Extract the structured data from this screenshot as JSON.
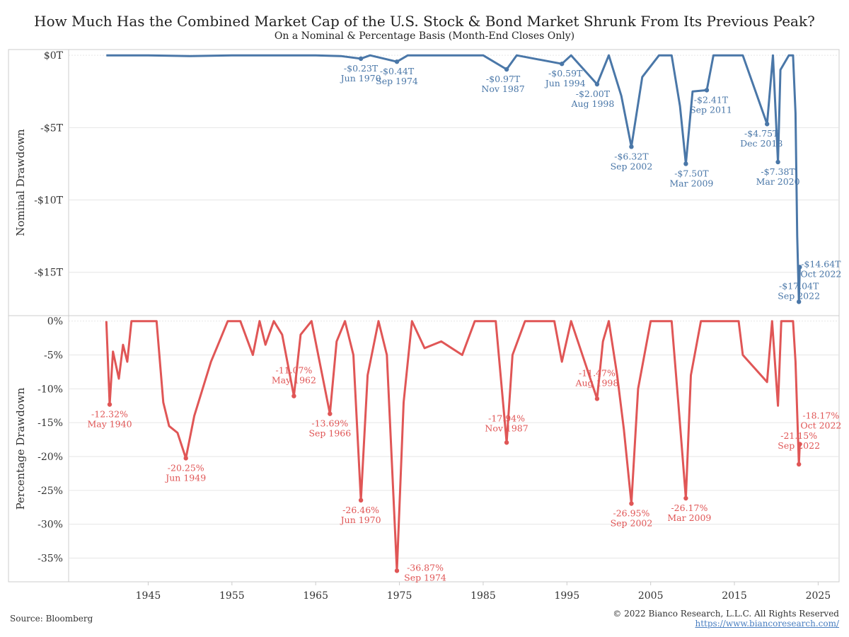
{
  "title": "How Much Has the Combined Market Cap of the U.S. Stock & Bond Market Shrunk From Its Previous Peak?",
  "subtitle": "On a Nominal & Percentage Basis (Month-End Closes Only)",
  "source": "Source: Bloomberg",
  "copyright": "© 2022 Bianco Research, L.L.C. All Rights Reserved",
  "url": "https://www.biancoresearch.com/",
  "colors": {
    "nominal": "#4a77a8",
    "percent": "#e05656",
    "grid": "#e6e6e6",
    "axis": "#cccccc"
  },
  "chart_data": [
    {
      "type": "line",
      "name": "nominal",
      "ylabel": "Nominal Drawdown",
      "ylim": [
        -18,
        0.4
      ],
      "yticks": [
        0,
        -5,
        -10,
        -15
      ],
      "ytick_labels": [
        "$0T",
        "-$5T",
        "-$10T",
        "-$15T"
      ],
      "xlim": [
        1935.5,
        2027.5
      ],
      "x": [
        1940.0,
        1945.0,
        1950.0,
        1955.0,
        1960.0,
        1965.0,
        1968.0,
        1970.4,
        1971.5,
        1974.7,
        1976.0,
        1980.0,
        1985.0,
        1987.8,
        1989.0,
        1994.4,
        1995.5,
        1998.6,
        2000.0,
        2001.5,
        2002.7,
        2004.0,
        2006.0,
        2007.5,
        2008.5,
        2009.2,
        2010.0,
        2011.7,
        2012.5,
        2014.0,
        2016.0,
        2018.9,
        2019.6,
        2020.2,
        2020.5,
        2021.5,
        2022.0,
        2022.3,
        2022.5,
        2022.7,
        2022.8
      ],
      "y": [
        0,
        0,
        -0.05,
        0,
        0,
        0,
        -0.05,
        -0.23,
        0,
        -0.44,
        0,
        0,
        0,
        -0.97,
        0,
        -0.59,
        0,
        -2.0,
        0,
        -2.8,
        -6.32,
        -1.5,
        0,
        0,
        -3.5,
        -7.5,
        -2.5,
        -2.41,
        0,
        0,
        0,
        -4.75,
        0,
        -7.38,
        -1.0,
        0,
        0,
        -4.0,
        -12.5,
        -17.04,
        -14.64
      ],
      "annotations": [
        {
          "x": 1970.4,
          "y": -0.23,
          "value": "-$0.23T",
          "date": "Jun 1970"
        },
        {
          "x": 1974.7,
          "y": -0.44,
          "value": "-$0.44T",
          "date": "Sep 1974"
        },
        {
          "x": 1987.8,
          "y": -0.97,
          "value": "-$0.97T",
          "date": "Nov 1987"
        },
        {
          "x": 1994.4,
          "y": -0.59,
          "value": "-$0.59T",
          "date": "Jun 1994"
        },
        {
          "x": 1998.6,
          "y": -2.0,
          "value": "-$2.00T",
          "date": "Aug 1998"
        },
        {
          "x": 2002.7,
          "y": -6.32,
          "value": "-$6.32T",
          "date": "Sep 2002"
        },
        {
          "x": 2009.2,
          "y": -7.5,
          "value": "-$7.50T",
          "date": "Mar 2009"
        },
        {
          "x": 2011.7,
          "y": -2.41,
          "value": "-$2.41T",
          "date": "Sep 2011"
        },
        {
          "x": 2018.9,
          "y": -4.75,
          "value": "-$4.75T",
          "date": "Dec 2018"
        },
        {
          "x": 2020.2,
          "y": -7.38,
          "value": "-$7.38T",
          "date": "Mar 2020"
        },
        {
          "x": 2022.7,
          "y": -17.04,
          "value": "-$17.04T",
          "date": "Sep 2022"
        },
        {
          "x": 2022.8,
          "y": -14.64,
          "value": "-$14.64T",
          "date": "Oct 2022"
        }
      ]
    },
    {
      "type": "line",
      "name": "percent",
      "ylabel": "Percentage Drawdown",
      "ylim": [
        -38.5,
        0.8
      ],
      "yticks": [
        0,
        -5,
        -10,
        -15,
        -20,
        -25,
        -30,
        -35
      ],
      "ytick_labels": [
        "0%",
        "-5%",
        "-10%",
        "-15%",
        "-20%",
        "-25%",
        "-30%",
        "-35%"
      ],
      "xlim": [
        1935.5,
        2027.5
      ],
      "xticks": [
        1945,
        1955,
        1965,
        1975,
        1985,
        1995,
        2005,
        2015,
        2025
      ],
      "xtick_labels": [
        "1945",
        "1955",
        "1965",
        "1975",
        "1985",
        "1995",
        "2005",
        "2015",
        "2025"
      ],
      "x": [
        1940.0,
        1940.4,
        1940.8,
        1941.5,
        1942.0,
        1942.5,
        1943.0,
        1944.0,
        1945.0,
        1946.0,
        1946.8,
        1947.5,
        1948.5,
        1949.5,
        1950.5,
        1951.5,
        1952.5,
        1953.5,
        1954.5,
        1956.0,
        1957.5,
        1958.3,
        1959.0,
        1960.0,
        1961.0,
        1962.4,
        1963.2,
        1964.5,
        1966.7,
        1967.5,
        1968.5,
        1969.5,
        1970.4,
        1971.2,
        1972.5,
        1973.5,
        1974.7,
        1975.5,
        1976.5,
        1978.0,
        1980.0,
        1982.5,
        1984.0,
        1986.5,
        1987.8,
        1988.5,
        1990.0,
        1993.5,
        1994.4,
        1995.5,
        1998.6,
        1999.3,
        2000.0,
        2001.0,
        2001.8,
        2002.7,
        2003.5,
        2005.0,
        2007.5,
        2008.3,
        2009.2,
        2009.8,
        2011.0,
        2012.5,
        2015.5,
        2016.0,
        2018.9,
        2019.5,
        2020.2,
        2020.6,
        2021.5,
        2022.0,
        2022.3,
        2022.7,
        2022.8
      ],
      "y": [
        0,
        -12.32,
        -4.5,
        -8.5,
        -3.5,
        -6.0,
        0,
        0,
        0,
        0,
        -12.0,
        -15.5,
        -16.5,
        -20.25,
        -14.0,
        -10.0,
        -6.0,
        -3.0,
        0,
        0,
        -5.0,
        0,
        -3.5,
        0,
        -2.0,
        -11.07,
        -2.0,
        0,
        -13.69,
        -3.0,
        0,
        -5.0,
        -26.46,
        -8.0,
        0,
        -5.0,
        -36.87,
        -12.0,
        0,
        -4.0,
        -3.0,
        -5.0,
        0,
        0,
        -17.94,
        -5.0,
        0,
        0,
        -6.0,
        0,
        -11.47,
        -3.0,
        0,
        -8.0,
        -16.0,
        -26.95,
        -10.0,
        0,
        0,
        -12.0,
        -26.17,
        -8.0,
        0,
        0,
        0,
        -5.0,
        -9.0,
        0,
        -12.5,
        0,
        0,
        0,
        -6.0,
        -21.15,
        -18.17
      ],
      "annotations": [
        {
          "x": 1940.4,
          "y": -12.32,
          "value": "-12.32%",
          "date": "May 1940"
        },
        {
          "x": 1949.5,
          "y": -20.25,
          "value": "-20.25%",
          "date": "Jun 1949"
        },
        {
          "x": 1962.4,
          "y": -11.07,
          "value": "-11.07%",
          "date": "May 1962"
        },
        {
          "x": 1966.7,
          "y": -13.69,
          "value": "-13.69%",
          "date": "Sep 1966"
        },
        {
          "x": 1970.4,
          "y": -26.46,
          "value": "-26.46%",
          "date": "Jun 1970"
        },
        {
          "x": 1974.7,
          "y": -36.87,
          "value": "-36.87%",
          "date": "Sep 1974"
        },
        {
          "x": 1987.8,
          "y": -17.94,
          "value": "-17.94%",
          "date": "Nov 1987"
        },
        {
          "x": 1998.6,
          "y": -11.47,
          "value": "-11.47%",
          "date": "Aug 1998"
        },
        {
          "x": 2002.7,
          "y": -26.95,
          "value": "-26.95%",
          "date": "Sep 2002"
        },
        {
          "x": 2009.2,
          "y": -26.17,
          "value": "-26.17%",
          "date": "Mar 2009"
        },
        {
          "x": 2022.7,
          "y": -21.15,
          "value": "-21.15%",
          "date": "Sep 2022"
        },
        {
          "x": 2022.8,
          "y": -18.17,
          "value": "-18.17%",
          "date": "Oct 2022"
        }
      ]
    }
  ]
}
